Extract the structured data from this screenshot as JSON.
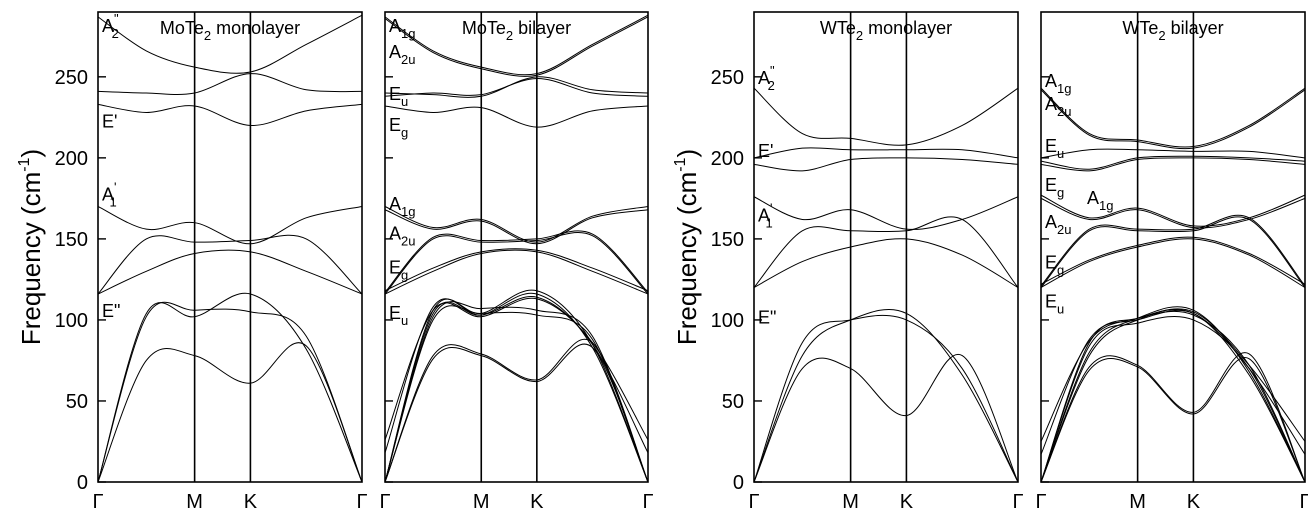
{
  "chart_data": [
    {
      "type": "line",
      "title": "MoTe",
      "title_sub": "2",
      "title_rest": " monolayer",
      "ylabel": "Frequency (cm",
      "ylabel_sup": "-1",
      "ylabel_end": ")",
      "ylim": [
        0,
        290
      ],
      "yticks": [
        "0",
        "50",
        "100",
        "150",
        "200",
        "250"
      ],
      "xticks": [
        "Γ",
        "M",
        "K",
        "Γ"
      ],
      "kpoints": [
        0,
        0.5,
        0.7887,
        1.3661
      ],
      "mode_labels": [
        {
          "base": "A",
          "sub": "",
          "sup": "\"",
          "sub2": "2",
          "y": 282
        },
        {
          "base": "E'",
          "sub": "",
          "y": 223
        },
        {
          "base": "A",
          "sub": "",
          "sup": "'",
          "sub2": "1",
          "y": 178
        },
        {
          "base": "E\"",
          "sub": "",
          "y": 106
        }
      ],
      "series": [
        {
          "values": [
            0,
            75,
            78,
            61,
            84,
            0
          ]
        },
        {
          "values": [
            0,
            102,
            106,
            105,
            90,
            0
          ]
        },
        {
          "values": [
            0,
            104,
            102,
            116,
            82,
            0
          ]
        },
        {
          "values": [
            116,
            130,
            141,
            142,
            130,
            116
          ]
        },
        {
          "values": [
            116,
            150,
            148,
            149,
            150,
            116
          ]
        },
        {
          "values": [
            170,
            156,
            160,
            147,
            163,
            170
          ]
        },
        {
          "values": [
            233,
            228,
            232,
            220,
            229,
            233
          ]
        },
        {
          "values": [
            241,
            240,
            240,
            252,
            242,
            241
          ]
        },
        {
          "values": [
            287,
            266,
            256,
            253,
            270,
            288
          ]
        }
      ]
    },
    {
      "type": "line",
      "title": "MoTe",
      "title_sub": "2",
      "title_rest": " bilayer",
      "ylim": [
        0,
        290
      ],
      "xticks": [
        "Γ",
        "M",
        "K",
        "Γ"
      ],
      "kpoints": [
        0,
        0.5,
        0.7887,
        1.3661
      ],
      "mode_labels": [
        {
          "base": "A",
          "sub": "1g",
          "y": 282
        },
        {
          "base": "A",
          "sub": "2u",
          "y": 266
        },
        {
          "base": "E",
          "sub": "u",
          "y": 240
        },
        {
          "base": "E",
          "sub": "g",
          "y": 221
        },
        {
          "base": "A",
          "sub": "1g",
          "y": 172
        },
        {
          "base": "A",
          "sub": "2u",
          "y": 154
        },
        {
          "base": "E",
          "sub": "g",
          "y": 133
        },
        {
          "base": "E",
          "sub": "u",
          "y": 105
        }
      ],
      "series": [
        {
          "values": [
            0,
            76,
            78,
            62,
            83,
            0
          ]
        },
        {
          "values": [
            0,
            78,
            79,
            63,
            86,
            0
          ]
        },
        {
          "values": [
            0,
            102,
            107,
            106,
            90,
            0
          ]
        },
        {
          "values": [
            0,
            104,
            103,
            116,
            83,
            0
          ]
        },
        {
          "values": [
            0,
            106,
            104,
            118,
            85,
            0
          ]
        },
        {
          "values": [
            0,
            100,
            104,
            103,
            88,
            0
          ]
        },
        {
          "values": [
            18,
            108,
            103,
            114,
            85,
            18
          ]
        },
        {
          "values": [
            26,
            106,
            102,
            113,
            86,
            26
          ]
        },
        {
          "values": [
            116,
            130,
            141,
            142,
            130,
            116
          ]
        },
        {
          "values": [
            118,
            132,
            142,
            143,
            132,
            118
          ]
        },
        {
          "values": [
            116,
            150,
            148,
            149,
            152,
            116
          ]
        },
        {
          "values": [
            117,
            151,
            149,
            150,
            153,
            117
          ]
        },
        {
          "values": [
            168,
            156,
            161,
            147,
            163,
            168
          ]
        },
        {
          "values": [
            170,
            157,
            162,
            148,
            164,
            170
          ]
        },
        {
          "values": [
            232,
            228,
            231,
            219,
            229,
            232
          ]
        },
        {
          "values": [
            240,
            239,
            238,
            250,
            242,
            240
          ]
        },
        {
          "values": [
            238,
            240,
            239,
            249,
            240,
            238
          ]
        },
        {
          "values": [
            287,
            266,
            256,
            252,
            270,
            288
          ]
        },
        {
          "values": [
            286,
            265,
            255,
            251,
            269,
            287
          ]
        }
      ]
    },
    {
      "type": "line",
      "title": "WTe",
      "title_sub": "2",
      "title_rest": " monolayer",
      "ylabel": "Frequency (cm",
      "ylabel_sup": "-1",
      "ylabel_end": ")",
      "ylim": [
        0,
        290
      ],
      "yticks": [
        "0",
        "50",
        "100",
        "150",
        "200",
        "250"
      ],
      "xticks": [
        "Γ",
        "M",
        "K",
        "Γ"
      ],
      "kpoints": [
        0,
        0.5,
        0.7887,
        1.3661
      ],
      "mode_labels": [
        {
          "base": "A",
          "sub": "",
          "sup": "\"",
          "sub2": "2",
          "y": 250
        },
        {
          "base": "E'",
          "sub": "",
          "y": 205
        },
        {
          "base": "A",
          "sub": "",
          "sup": "'",
          "sub2": "1",
          "y": 165
        },
        {
          "base": "E\"",
          "sub": "",
          "y": 102
        }
      ],
      "series": [
        {
          "values": [
            0,
            70,
            70,
            41,
            78,
            0
          ]
        },
        {
          "values": [
            0,
            86,
            100,
            100,
            70,
            0
          ]
        },
        {
          "values": [
            0,
            78,
            100,
            104,
            66,
            0
          ]
        },
        {
          "values": [
            120,
            136,
            145,
            150,
            140,
            120
          ]
        },
        {
          "values": [
            120,
            155,
            155,
            155,
            162,
            120
          ]
        },
        {
          "values": [
            176,
            162,
            168,
            156,
            162,
            176
          ]
        },
        {
          "values": [
            196,
            192,
            199,
            200,
            199,
            196
          ]
        },
        {
          "values": [
            200,
            206,
            205,
            205,
            205,
            200
          ]
        },
        {
          "values": [
            243,
            215,
            212,
            208,
            220,
            243
          ]
        }
      ]
    },
    {
      "type": "line",
      "title": "WTe",
      "title_sub": "2",
      "title_rest": " bilayer",
      "ylim": [
        0,
        290
      ],
      "xticks": [
        "Γ",
        "M",
        "K",
        "Γ"
      ],
      "kpoints": [
        0,
        0.5,
        0.7887,
        1.3661
      ],
      "mode_labels": [
        {
          "base": "A",
          "sub": "1g",
          "y": 248
        },
        {
          "base": "A",
          "sub": "2u",
          "y": 234
        },
        {
          "base": "E",
          "sub": "u",
          "y": 208
        },
        {
          "base": "E",
          "sub": "g",
          "y": 184
        },
        {
          "base": "A",
          "sub": "1g",
          "y": 176,
          "x_off": 42
        },
        {
          "base": "A",
          "sub": "2u",
          "y": 161
        },
        {
          "base": "E",
          "sub": "g",
          "y": 136
        },
        {
          "base": "E",
          "sub": "u",
          "y": 112
        }
      ],
      "series": [
        {
          "values": [
            0,
            69,
            71,
            42,
            76,
            0
          ]
        },
        {
          "values": [
            0,
            71,
            72,
            43,
            79,
            0
          ]
        },
        {
          "values": [
            0,
            84,
            98,
            100,
            70,
            0
          ]
        },
        {
          "values": [
            0,
            86,
            101,
            103,
            72,
            0
          ]
        },
        {
          "values": [
            0,
            78,
            100,
            104,
            66,
            0
          ]
        },
        {
          "values": [
            0,
            80,
            101,
            106,
            68,
            0
          ]
        },
        {
          "values": [
            17,
            88,
            100,
            104,
            70,
            17
          ]
        },
        {
          "values": [
            25,
            87,
            101,
            105,
            72,
            25
          ]
        },
        {
          "values": [
            120,
            136,
            145,
            150,
            140,
            120
          ]
        },
        {
          "values": [
            122,
            137,
            146,
            151,
            141,
            122
          ]
        },
        {
          "values": [
            120,
            155,
            155,
            155,
            162,
            120
          ]
        },
        {
          "values": [
            121,
            156,
            156,
            156,
            163,
            121
          ]
        },
        {
          "values": [
            175,
            162,
            168,
            157,
            162,
            175
          ]
        },
        {
          "values": [
            177,
            163,
            169,
            158,
            163,
            177
          ]
        },
        {
          "values": [
            196,
            192,
            199,
            200,
            199,
            196
          ]
        },
        {
          "values": [
            198,
            193,
            200,
            201,
            200,
            198
          ]
        },
        {
          "values": [
            200,
            205,
            205,
            204,
            204,
            200
          ]
        },
        {
          "values": [
            243,
            215,
            211,
            207,
            220,
            243
          ]
        },
        {
          "values": [
            242,
            214,
            210,
            206,
            219,
            242
          ]
        }
      ]
    }
  ]
}
